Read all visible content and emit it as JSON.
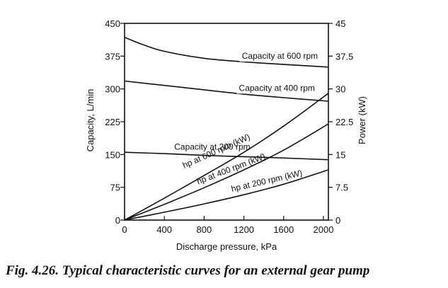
{
  "caption": "Fig. 4.26. Typical characteristic curves for an external gear pump",
  "chart_data": {
    "type": "line",
    "xlabel": "Discharge pressure, kPa",
    "ylabel": "Capacity, L/min",
    "y2label": "Power (kW)",
    "xlim": [
      0,
      2050
    ],
    "ylim": [
      0,
      450
    ],
    "y2lim": [
      0,
      45
    ],
    "x_ticks": [
      0,
      400,
      800,
      1200,
      1600,
      2000
    ],
    "y_ticks": [
      0,
      75,
      150,
      225,
      300,
      375,
      450
    ],
    "y2_ticks": [
      "0",
      "7.5",
      "15",
      "22.5",
      "30",
      "37.5",
      "45"
    ],
    "grid": false,
    "series": [
      {
        "name": "Capacity at 600 rpm",
        "axis": "left",
        "x": [
          0,
          200,
          400,
          800,
          1200,
          1600,
          2050
        ],
        "y": [
          418,
          400,
          386,
          370,
          362,
          356,
          350
        ]
      },
      {
        "name": "Capacity at 400 rpm",
        "axis": "left",
        "x": [
          0,
          400,
          800,
          1200,
          1600,
          2050
        ],
        "y": [
          318,
          308,
          298,
          288,
          280,
          272
        ]
      },
      {
        "name": "Capacity at 200 rpm",
        "axis": "left",
        "x": [
          0,
          400,
          800,
          1200,
          1600,
          2050
        ],
        "y": [
          155,
          152,
          148,
          145,
          142,
          138
        ]
      },
      {
        "name": "hp at 600 rpm (kW)",
        "axis": "right",
        "x": [
          0,
          400,
          800,
          1200,
          1600,
          2050
        ],
        "y": [
          0,
          5,
          10.2,
          15.5,
          21.5,
          29
        ]
      },
      {
        "name": "hp at 400 rpm (kW)",
        "axis": "right",
        "x": [
          0,
          400,
          800,
          1200,
          1600,
          2050
        ],
        "y": [
          0,
          3.6,
          7.4,
          11.5,
          16,
          22
        ]
      },
      {
        "name": "hp at 200 rpm (kW)",
        "axis": "right",
        "x": [
          0,
          400,
          800,
          1200,
          1600,
          2050
        ],
        "y": [
          0,
          1.8,
          3.7,
          5.8,
          8.2,
          11.5
        ]
      }
    ]
  }
}
